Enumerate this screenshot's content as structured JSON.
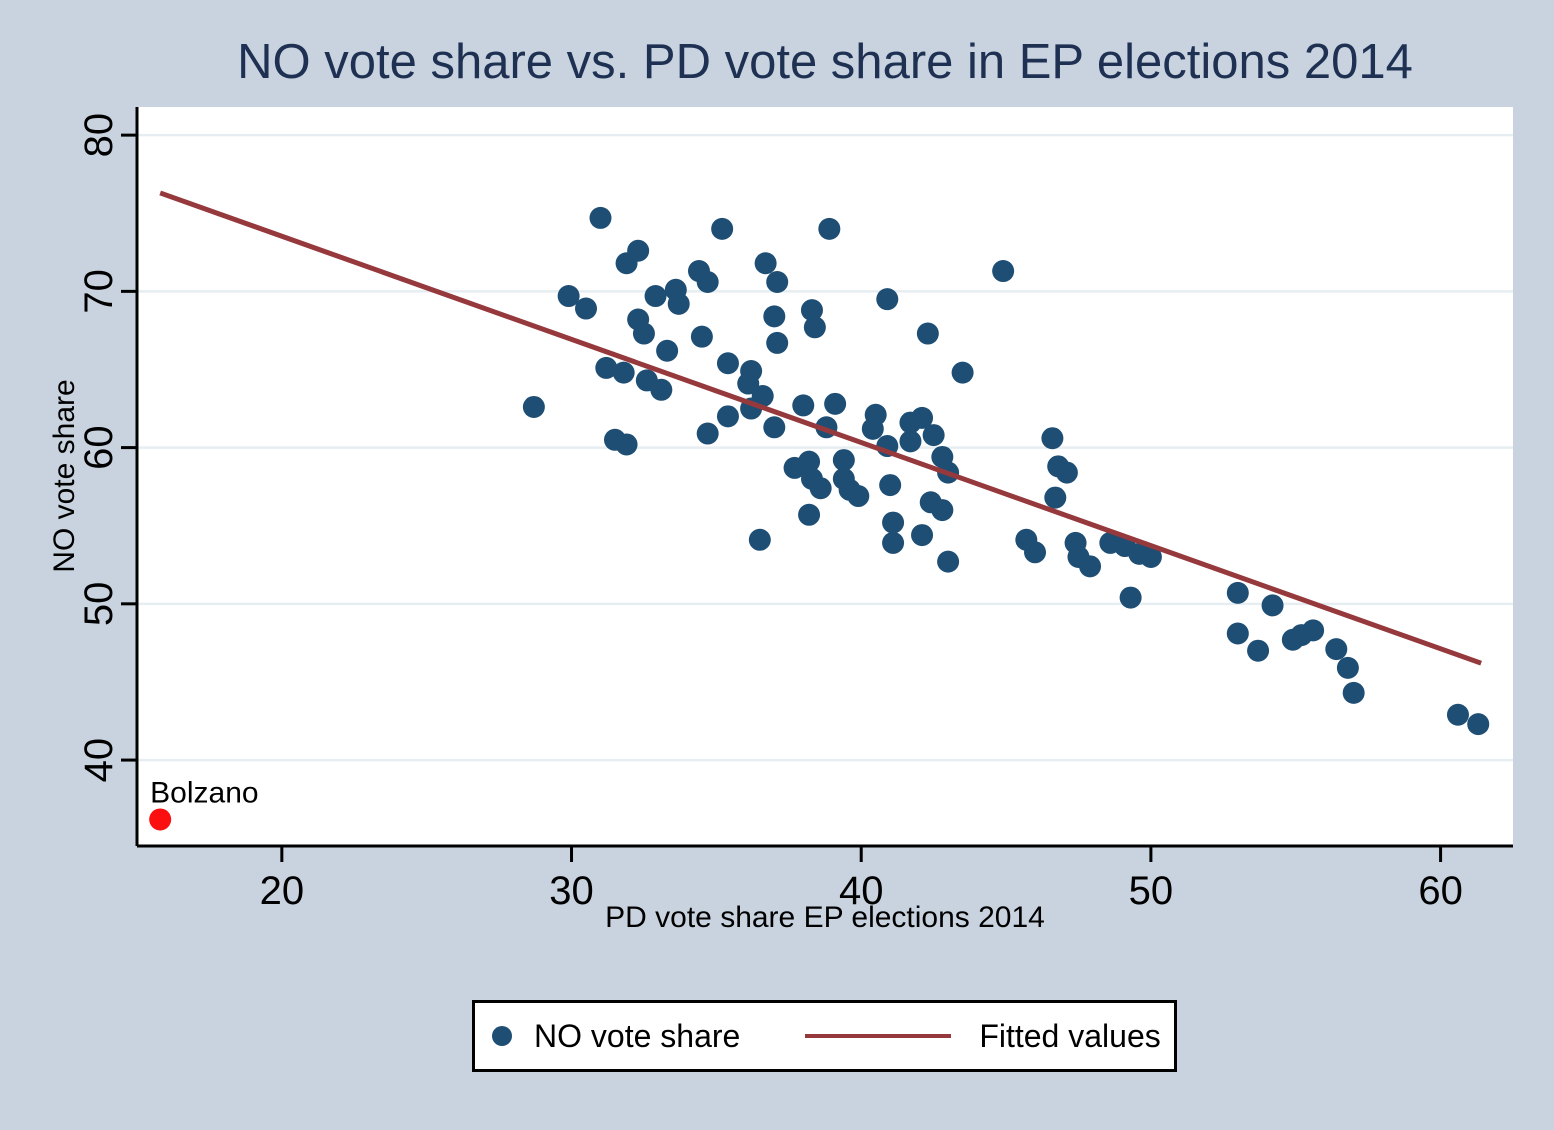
{
  "colors": {
    "background": "#c8d3df",
    "plot_background": "#ffffff",
    "gridline": "#e6eef2",
    "axis": "#000000",
    "title_text": "#1f3153",
    "scatter": "#1f4e74",
    "fitted_line": "#96393d",
    "highlight": "#fb0f0f",
    "legend_background": "#ffffff",
    "legend_border": "#000000"
  },
  "chart_data": {
    "type": "scatter",
    "title": "NO vote share vs. PD vote share in EP elections 2014",
    "xlabel": "PD vote share EP elections 2014",
    "ylabel": "NO vote share",
    "xlim": [
      15,
      62.5
    ],
    "ylim": [
      34.5,
      81.8
    ],
    "xticks": [
      20,
      30,
      40,
      50,
      60
    ],
    "yticks": [
      40,
      50,
      60,
      70,
      80
    ],
    "grid": "horizontal-only",
    "y_tick_label_rotation": 90,
    "legend_position": "bottom-center",
    "series": [
      {
        "name": "NO vote share",
        "kind": "scatter",
        "color_key": "scatter",
        "marker_radius": 11,
        "points": [
          [
            31.0,
            74.7
          ],
          [
            35.2,
            74.0
          ],
          [
            38.9,
            74.0
          ],
          [
            32.3,
            72.6
          ],
          [
            31.9,
            71.8
          ],
          [
            36.7,
            71.8
          ],
          [
            34.4,
            71.3
          ],
          [
            34.7,
            70.6
          ],
          [
            37.1,
            70.6
          ],
          [
            33.6,
            70.1
          ],
          [
            33.7,
            69.2
          ],
          [
            29.9,
            69.7
          ],
          [
            30.5,
            68.9
          ],
          [
            32.9,
            69.7
          ],
          [
            44.9,
            71.3
          ],
          [
            40.9,
            69.5
          ],
          [
            42.3,
            67.3
          ],
          [
            43.5,
            64.8
          ],
          [
            37.0,
            68.4
          ],
          [
            38.3,
            68.8
          ],
          [
            38.4,
            67.7
          ],
          [
            32.3,
            68.2
          ],
          [
            32.5,
            67.3
          ],
          [
            34.5,
            67.1
          ],
          [
            37.1,
            66.7
          ],
          [
            33.3,
            66.2
          ],
          [
            35.4,
            65.4
          ],
          [
            36.2,
            64.9
          ],
          [
            36.1,
            64.1
          ],
          [
            31.2,
            65.1
          ],
          [
            31.8,
            64.8
          ],
          [
            32.6,
            64.3
          ],
          [
            33.1,
            63.7
          ],
          [
            36.6,
            63.3
          ],
          [
            36.2,
            62.5
          ],
          [
            28.7,
            62.6
          ],
          [
            38.0,
            62.7
          ],
          [
            39.1,
            62.8
          ],
          [
            35.4,
            62.0
          ],
          [
            34.7,
            60.9
          ],
          [
            31.5,
            60.5
          ],
          [
            31.9,
            60.2
          ],
          [
            37.0,
            61.3
          ],
          [
            38.8,
            61.3
          ],
          [
            40.5,
            62.1
          ],
          [
            40.4,
            61.2
          ],
          [
            41.7,
            61.6
          ],
          [
            42.1,
            61.9
          ],
          [
            40.9,
            60.1
          ],
          [
            41.7,
            60.4
          ],
          [
            42.5,
            60.8
          ],
          [
            42.8,
            59.4
          ],
          [
            43.0,
            58.4
          ],
          [
            37.7,
            58.7
          ],
          [
            38.2,
            59.1
          ],
          [
            38.3,
            58.0
          ],
          [
            38.6,
            57.4
          ],
          [
            39.4,
            59.2
          ],
          [
            39.4,
            58.0
          ],
          [
            39.6,
            57.3
          ],
          [
            39.9,
            56.9
          ],
          [
            38.2,
            55.7
          ],
          [
            41.0,
            57.6
          ],
          [
            41.1,
            55.2
          ],
          [
            42.4,
            56.5
          ],
          [
            42.8,
            56.0
          ],
          [
            41.1,
            53.9
          ],
          [
            42.1,
            54.4
          ],
          [
            43.0,
            52.7
          ],
          [
            36.5,
            54.1
          ],
          [
            46.6,
            60.6
          ],
          [
            46.8,
            58.8
          ],
          [
            47.1,
            58.4
          ],
          [
            46.7,
            56.8
          ],
          [
            45.7,
            54.1
          ],
          [
            46.0,
            53.3
          ],
          [
            47.4,
            53.9
          ],
          [
            47.5,
            53.0
          ],
          [
            47.9,
            52.4
          ],
          [
            48.6,
            53.9
          ],
          [
            49.1,
            53.7
          ],
          [
            49.6,
            53.2
          ],
          [
            50.0,
            53.0
          ],
          [
            49.3,
            50.4
          ],
          [
            53.0,
            50.7
          ],
          [
            54.2,
            49.9
          ],
          [
            53.0,
            48.1
          ],
          [
            53.7,
            47.0
          ],
          [
            54.9,
            47.7
          ],
          [
            55.2,
            48.0
          ],
          [
            55.6,
            48.3
          ],
          [
            56.4,
            47.1
          ],
          [
            56.8,
            45.9
          ],
          [
            57.0,
            44.3
          ],
          [
            60.6,
            42.9
          ],
          [
            61.3,
            42.3
          ]
        ]
      },
      {
        "name": "Fitted values",
        "kind": "line",
        "color_key": "fitted_line",
        "stroke_width": 5,
        "points": [
          [
            15.8,
            76.3
          ],
          [
            61.4,
            46.2
          ]
        ]
      },
      {
        "name": "Bolzano",
        "kind": "scatter",
        "color_key": "highlight",
        "marker_radius": 11,
        "label": "Bolzano",
        "points": [
          [
            15.8,
            36.2
          ]
        ]
      }
    ],
    "legend": {
      "entries": [
        {
          "label": "NO vote share",
          "marker": "dot"
        },
        {
          "label": "Fitted values",
          "marker": "line"
        }
      ]
    }
  }
}
